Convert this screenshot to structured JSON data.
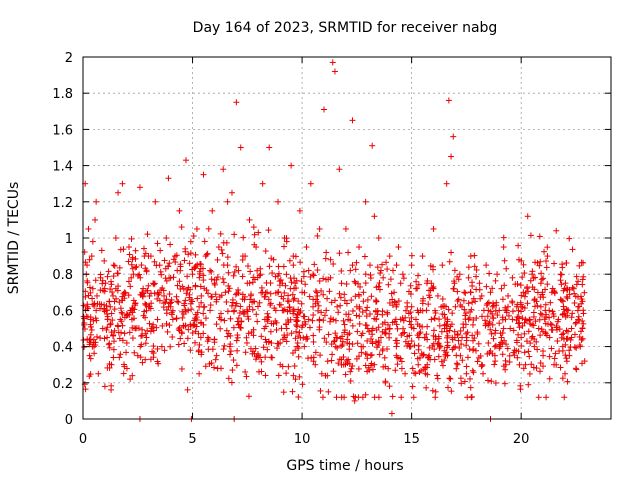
{
  "chart_data": {
    "type": "scatter",
    "title": "Day 164 of 2023, SRMTID for receiver nabg",
    "xlabel": "GPS time / hours",
    "ylabel": "SRMTID / TECUs",
    "xlim": [
      0,
      24.1
    ],
    "ylim": [
      0,
      2
    ],
    "x_ticks": [
      0,
      5,
      10,
      15,
      20
    ],
    "x_tick_labels": [
      "0",
      "5",
      "10",
      "15",
      "20"
    ],
    "y_ticks": [
      0,
      0.2,
      0.4,
      0.6,
      0.8,
      1,
      1.2,
      1.4,
      1.6,
      1.8,
      2
    ],
    "y_tick_labels": [
      "0",
      "0.2",
      "0.4",
      "0.6",
      "0.8",
      "1",
      "1.2",
      "1.4",
      "1.6",
      "1.8",
      "2"
    ],
    "grid": true,
    "marker": "+",
    "series_color": "#ee0000",
    "series": [
      {
        "name": "SRMTID",
        "points": [
          [
            0.05,
            0.52
          ],
          [
            0.1,
            1.3
          ],
          [
            0.15,
            0.8
          ],
          [
            0.2,
            0.62
          ],
          [
            0.25,
            1.05
          ],
          [
            0.3,
            0.35
          ],
          [
            0.35,
            0.55
          ],
          [
            0.4,
            0.9
          ],
          [
            0.45,
            0.72
          ],
          [
            0.5,
            0.4
          ],
          [
            0.55,
            1.1
          ],
          [
            0.6,
            0.6
          ],
          [
            0.7,
            0.25
          ],
          [
            0.8,
            0.78
          ],
          [
            0.9,
            0.5
          ],
          [
            1.0,
            0.18
          ],
          [
            1.1,
            0.45
          ],
          [
            1.2,
            0.65
          ],
          [
            1.3,
            0.3
          ],
          [
            1.4,
            0.85
          ],
          [
            1.5,
            1.0
          ],
          [
            1.6,
            1.25
          ],
          [
            1.7,
            0.55
          ],
          [
            1.8,
            1.3
          ],
          [
            1.9,
            0.7
          ],
          [
            2.0,
            0.42
          ],
          [
            2.1,
            0.95
          ],
          [
            2.2,
            0.6
          ],
          [
            2.3,
            0.8
          ],
          [
            2.4,
            0.5
          ],
          [
            2.5,
            0.35
          ],
          [
            2.6,
            1.28
          ],
          [
            2.7,
            0.7
          ],
          [
            2.8,
            0.9
          ],
          [
            2.9,
            0.45
          ],
          [
            3.0,
            0.62
          ],
          [
            3.1,
            0.33
          ],
          [
            3.2,
            0.75
          ],
          [
            3.3,
            1.2
          ],
          [
            3.4,
            0.55
          ],
          [
            3.5,
            0.85
          ],
          [
            3.6,
            0.4
          ],
          [
            3.7,
            0.68
          ],
          [
            3.8,
            1.0
          ],
          [
            3.9,
            1.33
          ],
          [
            4.0,
            0.78
          ],
          [
            4.1,
            0.55
          ],
          [
            4.2,
            0.9
          ],
          [
            4.3,
            0.65
          ],
          [
            4.4,
            1.15
          ],
          [
            4.5,
            0.48
          ],
          [
            4.6,
            0.72
          ],
          [
            4.7,
            1.43
          ],
          [
            4.8,
            0.6
          ],
          [
            4.9,
            0.38
          ],
          [
            5.0,
            0.8
          ],
          [
            5.1,
            0.52
          ],
          [
            5.2,
            1.05
          ],
          [
            5.3,
            0.25
          ],
          [
            5.4,
            0.68
          ],
          [
            5.5,
            1.35
          ],
          [
            5.6,
            0.9
          ],
          [
            5.7,
            0.45
          ],
          [
            5.8,
            0.6
          ],
          [
            5.9,
            1.15
          ],
          [
            6.0,
            0.75
          ],
          [
            6.1,
            0.35
          ],
          [
            6.2,
            0.95
          ],
          [
            6.3,
            0.55
          ],
          [
            6.4,
            1.38
          ],
          [
            6.5,
            0.7
          ],
          [
            6.6,
            0.85
          ],
          [
            6.7,
            0.4
          ],
          [
            6.8,
            1.25
          ],
          [
            6.9,
            0.6
          ],
          [
            7.0,
            1.75
          ],
          [
            7.1,
            0.52
          ],
          [
            7.2,
            1.5
          ],
          [
            7.3,
            0.9
          ],
          [
            7.4,
            0.26
          ],
          [
            7.5,
            0.75
          ],
          [
            7.6,
            1.1
          ],
          [
            7.7,
            0.48
          ],
          [
            7.8,
            0.65
          ],
          [
            7.9,
            0.95
          ],
          [
            8.0,
            0.35
          ],
          [
            8.1,
            0.8
          ],
          [
            8.2,
            1.3
          ],
          [
            8.3,
            0.55
          ],
          [
            8.4,
            0.7
          ],
          [
            8.5,
            1.5
          ],
          [
            8.6,
            0.42
          ],
          [
            8.7,
            0.88
          ],
          [
            8.8,
            0.6
          ],
          [
            8.9,
            1.2
          ],
          [
            9.0,
            0.3
          ],
          [
            9.1,
            0.75
          ],
          [
            9.2,
            1.0
          ],
          [
            9.3,
            0.5
          ],
          [
            9.4,
            0.65
          ],
          [
            9.5,
            1.4
          ],
          [
            9.6,
            0.85
          ],
          [
            9.7,
            0.22
          ],
          [
            9.8,
            0.58
          ],
          [
            9.9,
            1.15
          ],
          [
            10.0,
            0.7
          ],
          [
            10.1,
            0.4
          ],
          [
            10.2,
            0.95
          ],
          [
            10.3,
            0.55
          ],
          [
            10.4,
            1.3
          ],
          [
            10.5,
            0.8
          ],
          [
            10.6,
            0.3
          ],
          [
            10.7,
            0.68
          ],
          [
            10.8,
            1.05
          ],
          [
            10.9,
            0.25
          ],
          [
            11.0,
            1.71
          ],
          [
            11.1,
            0.6
          ],
          [
            11.2,
            0.15
          ],
          [
            11.3,
            0.88
          ],
          [
            11.4,
            1.97
          ],
          [
            11.5,
            1.92
          ],
          [
            11.6,
            0.45
          ],
          [
            11.7,
            1.38
          ],
          [
            11.8,
            0.75
          ],
          [
            11.9,
            0.3
          ],
          [
            12.0,
            1.05
          ],
          [
            12.1,
            0.55
          ],
          [
            12.2,
            0.82
          ],
          [
            12.3,
            1.65
          ],
          [
            12.4,
            0.1
          ],
          [
            12.5,
            0.62
          ],
          [
            12.6,
            0.95
          ],
          [
            12.7,
            0.4
          ],
          [
            12.8,
            0.7
          ],
          [
            12.9,
            1.2
          ],
          [
            13.0,
            0.5
          ],
          [
            13.1,
            0.85
          ],
          [
            13.2,
            1.51
          ],
          [
            13.3,
            0.3
          ],
          [
            13.4,
            0.65
          ],
          [
            13.5,
            1.0
          ],
          [
            13.6,
            0.45
          ],
          [
            13.7,
            0.78
          ],
          [
            13.8,
            0.2
          ],
          [
            13.9,
            0.58
          ],
          [
            14.0,
            0.9
          ],
          [
            14.1,
            0.03
          ],
          [
            14.2,
            0.7
          ],
          [
            14.3,
            0.35
          ],
          [
            14.4,
            0.95
          ],
          [
            14.5,
            0.55
          ],
          [
            14.6,
            0.8
          ],
          [
            14.7,
            0.25
          ],
          [
            14.8,
            0.62
          ],
          [
            14.9,
            0.4
          ],
          [
            15.0,
            0.85
          ],
          [
            15.1,
            0.5
          ],
          [
            15.2,
            0.72
          ],
          [
            15.3,
            0.3
          ],
          [
            15.4,
            0.6
          ],
          [
            15.5,
            0.9
          ],
          [
            15.6,
            0.45
          ],
          [
            15.7,
            0.75
          ],
          [
            15.8,
            0.35
          ],
          [
            15.9,
            0.55
          ],
          [
            16.0,
            1.05
          ],
          [
            16.1,
            0.15
          ],
          [
            16.2,
            0.68
          ],
          [
            16.3,
            0.4
          ],
          [
            16.4,
            0.85
          ],
          [
            16.5,
            0.5
          ],
          [
            16.6,
            1.3
          ],
          [
            16.7,
            1.76
          ],
          [
            16.8,
            1.45
          ],
          [
            16.9,
            1.56
          ],
          [
            17.0,
            0.62
          ],
          [
            17.1,
            0.3
          ],
          [
            17.2,
            0.8
          ],
          [
            17.3,
            0.45
          ],
          [
            17.4,
            0.7
          ],
          [
            17.5,
            0.25
          ],
          [
            17.6,
            0.55
          ],
          [
            17.7,
            0.9
          ],
          [
            17.8,
            0.38
          ],
          [
            17.9,
            0.65
          ],
          [
            18.0,
            0.48
          ],
          [
            18.1,
            0.75
          ],
          [
            18.2,
            0.3
          ],
          [
            18.3,
            0.6
          ],
          [
            18.4,
            0.85
          ],
          [
            18.5,
            0.42
          ],
          [
            18.6,
            0.7
          ],
          [
            18.7,
            0.52
          ],
          [
            18.8,
            0.35
          ],
          [
            18.9,
            0.8
          ],
          [
            19.0,
            0.6
          ],
          [
            19.1,
            0.45
          ],
          [
            19.2,
            0.95
          ],
          [
            19.3,
            0.3
          ],
          [
            19.4,
            0.68
          ],
          [
            19.5,
            0.5
          ],
          [
            19.6,
            0.78
          ],
          [
            19.7,
            0.38
          ],
          [
            19.8,
            0.62
          ],
          [
            19.9,
            0.88
          ],
          [
            20.0,
            0.45
          ],
          [
            20.1,
            0.7
          ],
          [
            20.2,
            0.3
          ],
          [
            20.3,
            1.12
          ],
          [
            20.4,
            0.55
          ],
          [
            20.5,
            0.8
          ],
          [
            20.6,
            0.4
          ],
          [
            20.7,
            0.65
          ],
          [
            20.8,
            0.5
          ],
          [
            20.9,
            0.75
          ],
          [
            21.0,
            0.35
          ],
          [
            21.1,
            0.6
          ],
          [
            21.2,
            0.9
          ],
          [
            21.3,
            0.45
          ],
          [
            21.4,
            0.7
          ],
          [
            21.5,
            0.3
          ],
          [
            21.6,
            1.04
          ],
          [
            21.7,
            0.55
          ],
          [
            21.8,
            0.8
          ],
          [
            21.9,
            0.4
          ],
          [
            22.0,
            0.25
          ],
          [
            22.1,
            0.6
          ],
          [
            22.2,
            0.35
          ],
          [
            22.3,
            0.5
          ],
          [
            22.4,
            0.72
          ],
          [
            22.5,
            0.28
          ],
          [
            22.6,
            0.55
          ],
          [
            22.7,
            0.4
          ],
          [
            22.8,
            0.65
          ],
          [
            22.9,
            0.32
          ],
          [
            0.3,
            0.88
          ],
          [
            0.6,
            1.2
          ],
          [
            1.1,
            0.58
          ],
          [
            1.5,
            0.72
          ],
          [
            2.0,
            0.58
          ],
          [
            2.4,
            0.93
          ],
          [
            2.9,
            0.63
          ],
          [
            3.4,
            0.97
          ],
          [
            3.9,
            0.62
          ],
          [
            4.3,
            0.82
          ],
          [
            4.8,
            0.91
          ],
          [
            5.3,
            0.62
          ],
          [
            5.8,
            0.82
          ],
          [
            6.3,
            0.28
          ],
          [
            6.6,
            1.2
          ],
          [
            7.1,
            0.82
          ],
          [
            7.6,
            0.62
          ],
          [
            8.0,
            1.03
          ],
          [
            8.4,
            0.55
          ],
          [
            8.9,
            0.79
          ],
          [
            9.3,
            0.98
          ],
          [
            9.8,
            0.42
          ],
          [
            10.3,
            0.82
          ],
          [
            10.8,
            0.55
          ],
          [
            11.1,
            0.92
          ],
          [
            11.6,
            0.62
          ],
          [
            12.1,
            0.92
          ],
          [
            12.6,
            0.68
          ],
          [
            13.1,
            0.58
          ],
          [
            13.6,
            0.82
          ],
          [
            14.0,
            0.5
          ],
          [
            14.5,
            0.75
          ],
          [
            15.0,
            0.62
          ],
          [
            15.4,
            0.48
          ],
          [
            15.9,
            0.75
          ],
          [
            16.4,
            0.58
          ],
          [
            16.8,
            0.92
          ],
          [
            17.3,
            0.62
          ],
          [
            17.8,
            0.52
          ],
          [
            18.2,
            0.68
          ],
          [
            18.7,
            0.62
          ],
          [
            19.1,
            0.72
          ],
          [
            19.6,
            0.55
          ],
          [
            20.0,
            0.62
          ],
          [
            20.5,
            0.52
          ],
          [
            20.9,
            0.62
          ],
          [
            21.4,
            0.52
          ],
          [
            21.9,
            0.58
          ],
          [
            22.3,
            0.45
          ],
          [
            22.8,
            0.5
          ],
          [
            0.45,
            0.98
          ],
          [
            1.3,
            0.48
          ],
          [
            2.2,
            0.78
          ],
          [
            3.1,
            0.9
          ],
          [
            4.0,
            0.62
          ],
          [
            4.6,
            0.58
          ],
          [
            5.5,
            0.52
          ],
          [
            6.1,
            0.66
          ],
          [
            6.9,
            1.02
          ],
          [
            7.4,
            0.9
          ],
          [
            8.2,
            0.7
          ],
          [
            9.1,
            0.6
          ],
          [
            9.6,
            0.9
          ],
          [
            10.5,
            0.62
          ],
          [
            11.3,
            0.78
          ],
          [
            12.3,
            0.85
          ],
          [
            13.3,
            1.12
          ],
          [
            14.3,
            0.62
          ],
          [
            15.2,
            0.55
          ],
          [
            16.0,
            0.72
          ],
          [
            16.9,
            0.72
          ],
          [
            17.6,
            0.78
          ],
          [
            18.5,
            0.6
          ],
          [
            19.4,
            0.62
          ],
          [
            20.2,
            0.55
          ],
          [
            21.1,
            0.48
          ],
          [
            21.8,
            0.66
          ],
          [
            22.6,
            0.62
          ]
        ]
      }
    ],
    "near_zero_x": [
      2.6,
      4.95,
      6.9,
      18.6
    ]
  }
}
